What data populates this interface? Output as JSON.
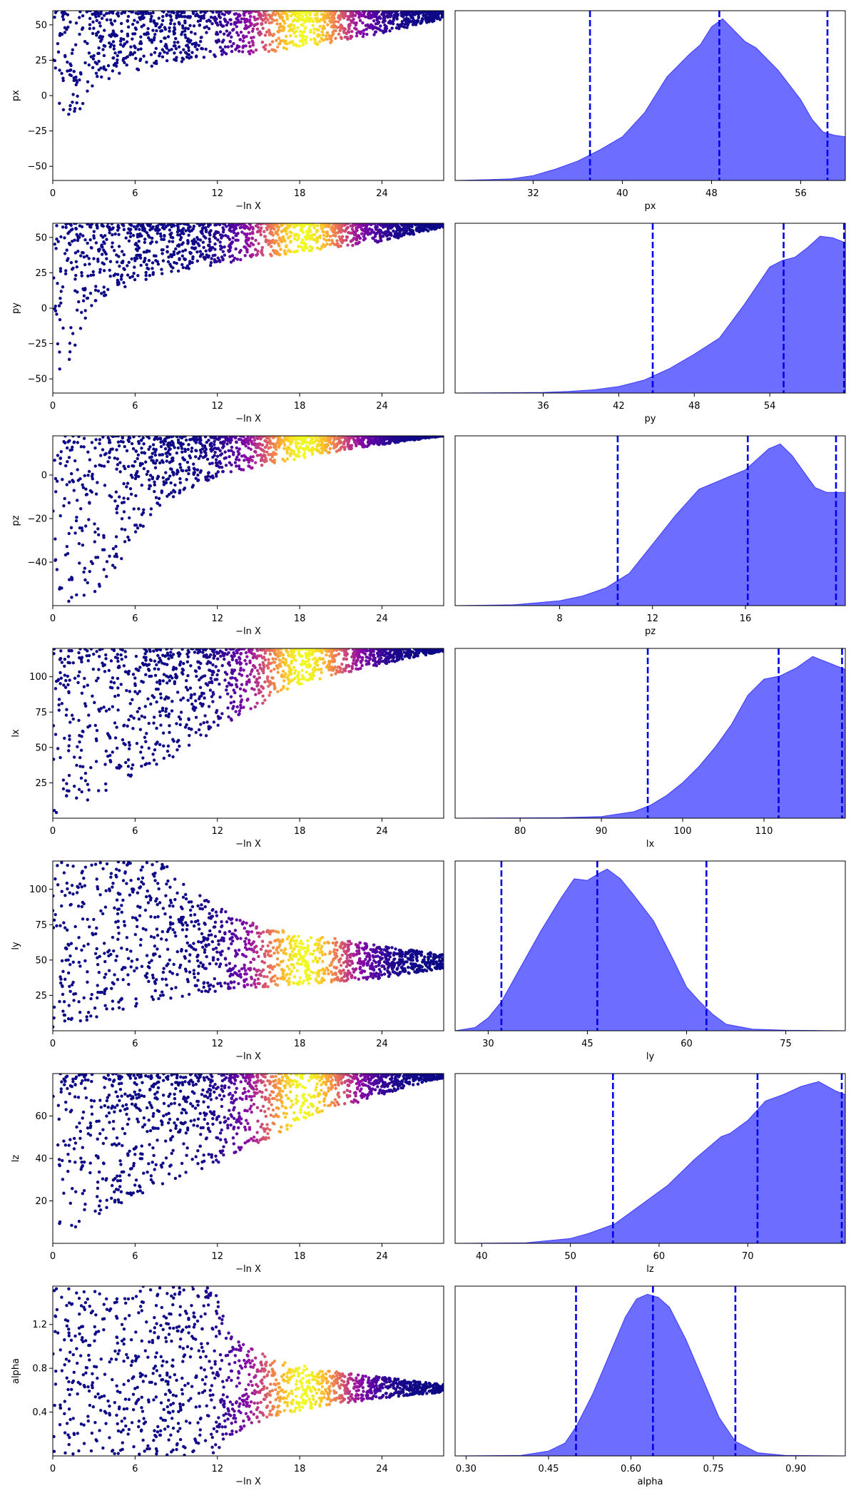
{
  "chart_data": [
    {
      "type": "scatter",
      "panel": "trace",
      "row": 0,
      "xlabel": "−ln X",
      "ylabel": "px",
      "xlim": [
        0,
        28.5
      ],
      "ylim": [
        -60,
        60
      ],
      "xticks": [
        0,
        6,
        12,
        18,
        24
      ],
      "yticks": [
        50,
        25,
        0,
        -25,
        -50
      ],
      "ytick_labels": [
        "50",
        "25",
        "0",
        "−25",
        "−50"
      ],
      "boundary": [
        [
          0,
          -60
        ],
        [
          1,
          -35
        ],
        [
          2,
          -10
        ],
        [
          3,
          5
        ],
        [
          5,
          15
        ],
        [
          8,
          22
        ],
        [
          12,
          27
        ],
        [
          16,
          31
        ],
        [
          20,
          37
        ],
        [
          24,
          44
        ],
        [
          28.5,
          54
        ]
      ],
      "color_peak_x": 18.3,
      "color_sigma": 2.6,
      "colormap": "plasma"
    },
    {
      "type": "area",
      "panel": "posterior",
      "row": 0,
      "xlabel": "px",
      "xlim": [
        25,
        60
      ],
      "ylim": [
        0,
        1.05
      ],
      "xticks": [
        32,
        40,
        48,
        56
      ],
      "quantile_lines": [
        37.1,
        48.7,
        58.4
      ],
      "curve": [
        [
          25,
          0
        ],
        [
          28,
          0.005
        ],
        [
          30,
          0.01
        ],
        [
          32,
          0.03
        ],
        [
          34,
          0.07
        ],
        [
          36,
          0.12
        ],
        [
          38,
          0.19
        ],
        [
          40,
          0.27
        ],
        [
          42,
          0.42
        ],
        [
          44,
          0.64
        ],
        [
          46,
          0.78
        ],
        [
          47,
          0.84
        ],
        [
          48,
          0.95
        ],
        [
          49,
          1.0
        ],
        [
          50,
          0.93
        ],
        [
          51,
          0.86
        ],
        [
          52,
          0.82
        ],
        [
          54,
          0.68
        ],
        [
          56,
          0.5
        ],
        [
          57,
          0.38
        ],
        [
          58,
          0.3
        ],
        [
          59,
          0.28
        ],
        [
          60,
          0.27
        ]
      ]
    },
    {
      "type": "scatter",
      "panel": "trace",
      "row": 1,
      "xlabel": "−ln X",
      "ylabel": "py",
      "xlim": [
        0,
        28.5
      ],
      "ylim": [
        -60,
        60
      ],
      "xticks": [
        0,
        6,
        12,
        18,
        24
      ],
      "yticks": [
        50,
        25,
        0,
        -25,
        -50
      ],
      "ytick_labels": [
        "50",
        "25",
        "0",
        "−25",
        "−50"
      ],
      "boundary": [
        [
          0,
          -60
        ],
        [
          1,
          -45
        ],
        [
          2,
          -15
        ],
        [
          3,
          2
        ],
        [
          5,
          14
        ],
        [
          8,
          24
        ],
        [
          12,
          31
        ],
        [
          16,
          37
        ],
        [
          20,
          42
        ],
        [
          24,
          47
        ],
        [
          28.5,
          57
        ]
      ],
      "color_peak_x": 18.3,
      "color_sigma": 2.6,
      "colormap": "plasma"
    },
    {
      "type": "area",
      "panel": "posterior",
      "row": 1,
      "xlabel": "py",
      "xlim": [
        29,
        60
      ],
      "ylim": [
        0,
        1.05
      ],
      "xticks": [
        36,
        42,
        48,
        54
      ],
      "quantile_lines": [
        44.7,
        55.1,
        59.9
      ],
      "curve": [
        [
          29,
          0
        ],
        [
          33,
          0.002
        ],
        [
          36,
          0.004
        ],
        [
          38,
          0.01
        ],
        [
          40,
          0.02
        ],
        [
          42,
          0.04
        ],
        [
          44,
          0.08
        ],
        [
          46,
          0.15
        ],
        [
          48,
          0.24
        ],
        [
          50,
          0.34
        ],
        [
          52,
          0.55
        ],
        [
          54,
          0.78
        ],
        [
          55,
          0.82
        ],
        [
          56,
          0.84
        ],
        [
          57,
          0.9
        ],
        [
          58,
          0.97
        ],
        [
          59,
          0.96
        ],
        [
          60,
          0.93
        ]
      ]
    },
    {
      "type": "scatter",
      "panel": "trace",
      "row": 2,
      "xlabel": "−ln X",
      "ylabel": "pz",
      "xlim": [
        0,
        28.5
      ],
      "ylim": [
        -60,
        18
      ],
      "xticks": [
        0,
        6,
        12,
        18,
        24
      ],
      "yticks": [
        0,
        -20,
        -40
      ],
      "ytick_labels": [
        "0",
        "−20",
        "−40"
      ],
      "boundary": [
        [
          0,
          -60
        ],
        [
          2,
          -60
        ],
        [
          4,
          -55
        ],
        [
          5,
          -40
        ],
        [
          6,
          -28
        ],
        [
          8,
          -13
        ],
        [
          10,
          -6
        ],
        [
          12,
          -1
        ],
        [
          16,
          5
        ],
        [
          20,
          10
        ],
        [
          24,
          14
        ],
        [
          28.5,
          18
        ]
      ],
      "color_peak_x": 18.3,
      "color_sigma": 2.6,
      "colormap": "plasma"
    },
    {
      "type": "area",
      "panel": "posterior",
      "row": 2,
      "xlabel": "pz",
      "xlim": [
        3.5,
        20.3
      ],
      "ylim": [
        0,
        1.05
      ],
      "xticks": [
        8,
        12,
        16
      ],
      "quantile_lines": [
        10.5,
        16.1,
        19.9
      ],
      "curve": [
        [
          3.5,
          0
        ],
        [
          6,
          0.005
        ],
        [
          8,
          0.03
        ],
        [
          9,
          0.06
        ],
        [
          10,
          0.11
        ],
        [
          11,
          0.2
        ],
        [
          12,
          0.38
        ],
        [
          13,
          0.56
        ],
        [
          14,
          0.72
        ],
        [
          15,
          0.78
        ],
        [
          16,
          0.84
        ],
        [
          17,
          0.97
        ],
        [
          17.5,
          1.0
        ],
        [
          18,
          0.93
        ],
        [
          19,
          0.73
        ],
        [
          19.5,
          0.7
        ],
        [
          20.3,
          0.7
        ]
      ]
    },
    {
      "type": "scatter",
      "panel": "trace",
      "row": 3,
      "xlabel": "−ln X",
      "ylabel": "lx",
      "xlim": [
        0,
        28.5
      ],
      "ylim": [
        0,
        120
      ],
      "xticks": [
        0,
        6,
        12,
        18,
        24
      ],
      "yticks": [
        100,
        75,
        50,
        25
      ],
      "ytick_labels": [
        "100",
        "75",
        "50",
        "25"
      ],
      "boundary": [
        [
          0,
          0
        ],
        [
          2,
          8
        ],
        [
          4,
          18
        ],
        [
          6,
          28
        ],
        [
          8,
          38
        ],
        [
          10,
          50
        ],
        [
          12,
          62
        ],
        [
          14,
          74
        ],
        [
          16,
          85
        ],
        [
          18,
          94
        ],
        [
          22,
          104
        ],
        [
          26,
          113
        ],
        [
          28.5,
          118
        ]
      ],
      "color_peak_x": 18.3,
      "color_sigma": 2.6,
      "colormap": "plasma"
    },
    {
      "type": "area",
      "panel": "posterior",
      "row": 3,
      "xlabel": "lx",
      "xlim": [
        72,
        120
      ],
      "ylim": [
        0,
        1.05
      ],
      "xticks": [
        80,
        90,
        100,
        110
      ],
      "quantile_lines": [
        95.7,
        111.8,
        119.6
      ],
      "curve": [
        [
          72,
          0
        ],
        [
          85,
          0.003
        ],
        [
          90,
          0.01
        ],
        [
          94,
          0.04
        ],
        [
          96,
          0.08
        ],
        [
          98,
          0.14
        ],
        [
          100,
          0.22
        ],
        [
          102,
          0.32
        ],
        [
          104,
          0.44
        ],
        [
          106,
          0.58
        ],
        [
          108,
          0.76
        ],
        [
          110,
          0.86
        ],
        [
          112,
          0.88
        ],
        [
          114,
          0.93
        ],
        [
          116,
          1.0
        ],
        [
          118,
          0.96
        ],
        [
          120,
          0.92
        ]
      ]
    },
    {
      "type": "scatter",
      "panel": "trace",
      "row": 4,
      "xlabel": "−ln X",
      "ylabel": "ly",
      "xlim": [
        0,
        28.5
      ],
      "ylim": [
        0,
        120
      ],
      "xticks": [
        0,
        6,
        12,
        18,
        24
      ],
      "yticks": [
        100,
        75,
        50,
        25
      ],
      "ytick_labels": [
        "100",
        "75",
        "50",
        "25"
      ],
      "upper": [
        [
          0,
          120
        ],
        [
          8,
          120
        ],
        [
          10,
          100
        ],
        [
          13,
          82
        ],
        [
          16,
          72
        ],
        [
          20,
          66
        ],
        [
          24,
          60
        ],
        [
          28.5,
          54
        ]
      ],
      "lower": [
        [
          0,
          0
        ],
        [
          2,
          5
        ],
        [
          4,
          12
        ],
        [
          8,
          22
        ],
        [
          12,
          28
        ],
        [
          16,
          31
        ],
        [
          20,
          34
        ],
        [
          24,
          37
        ],
        [
          28.5,
          44
        ]
      ],
      "color_peak_x": 18.3,
      "color_sigma": 2.6,
      "colormap": "plasma"
    },
    {
      "type": "area",
      "panel": "posterior",
      "row": 4,
      "xlabel": "ly",
      "xlim": [
        25,
        84
      ],
      "ylim": [
        0,
        1.05
      ],
      "xticks": [
        30,
        45,
        60,
        75
      ],
      "quantile_lines": [
        32.0,
        46.5,
        63.0
      ],
      "curve": [
        [
          25,
          0
        ],
        [
          28,
          0.02
        ],
        [
          30,
          0.08
        ],
        [
          32,
          0.18
        ],
        [
          35,
          0.4
        ],
        [
          38,
          0.62
        ],
        [
          41,
          0.82
        ],
        [
          43,
          0.94
        ],
        [
          45,
          0.93
        ],
        [
          47,
          0.98
        ],
        [
          48,
          1.0
        ],
        [
          50,
          0.94
        ],
        [
          52,
          0.84
        ],
        [
          55,
          0.68
        ],
        [
          58,
          0.44
        ],
        [
          60,
          0.27
        ],
        [
          62,
          0.18
        ],
        [
          64,
          0.1
        ],
        [
          66,
          0.04
        ],
        [
          70,
          0.01
        ],
        [
          75,
          0.003
        ],
        [
          84,
          0
        ]
      ]
    },
    {
      "type": "scatter",
      "panel": "trace",
      "row": 5,
      "xlabel": "−ln X",
      "ylabel": "lz",
      "xlim": [
        0,
        28.5
      ],
      "ylim": [
        0,
        80
      ],
      "xticks": [
        0,
        6,
        12,
        18,
        24
      ],
      "yticks": [
        60,
        40,
        20
      ],
      "ytick_labels": [
        "60",
        "40",
        "20"
      ],
      "boundary": [
        [
          0,
          0
        ],
        [
          2,
          7
        ],
        [
          4,
          14
        ],
        [
          6,
          21
        ],
        [
          8,
          27
        ],
        [
          10,
          33
        ],
        [
          12,
          38
        ],
        [
          14,
          44
        ],
        [
          16,
          50
        ],
        [
          18,
          56
        ],
        [
          20,
          62
        ],
        [
          22,
          66
        ],
        [
          26,
          74
        ],
        [
          28.5,
          78
        ]
      ],
      "color_peak_x": 18.3,
      "color_sigma": 2.6,
      "colormap": "plasma"
    },
    {
      "type": "area",
      "panel": "posterior",
      "row": 5,
      "xlabel": "lz",
      "xlim": [
        37,
        81
      ],
      "ylim": [
        0,
        1.05
      ],
      "xticks": [
        40,
        50,
        60,
        70
      ],
      "quantile_lines": [
        54.8,
        71.1,
        80.6
      ],
      "curve": [
        [
          37,
          0
        ],
        [
          45,
          0.003
        ],
        [
          50,
          0.03
        ],
        [
          52,
          0.06
        ],
        [
          55,
          0.12
        ],
        [
          58,
          0.24
        ],
        [
          61,
          0.36
        ],
        [
          64,
          0.52
        ],
        [
          67,
          0.66
        ],
        [
          68,
          0.68
        ],
        [
          70,
          0.76
        ],
        [
          72,
          0.88
        ],
        [
          74,
          0.92
        ],
        [
          76,
          0.97
        ],
        [
          78,
          1.0
        ],
        [
          80,
          0.94
        ],
        [
          81,
          0.92
        ]
      ]
    },
    {
      "type": "scatter",
      "panel": "trace",
      "row": 6,
      "xlabel": "−ln X",
      "ylabel": "alpha",
      "xlim": [
        0,
        28.5
      ],
      "ylim": [
        0,
        1.55
      ],
      "xticks": [
        0,
        6,
        12,
        18,
        24
      ],
      "yticks": [
        1.2,
        0.8,
        0.4
      ],
      "ytick_labels": [
        "1.2",
        "0.8",
        "0.4"
      ],
      "upper": [
        [
          0,
          1.55
        ],
        [
          12,
          1.55
        ],
        [
          13,
          1.1
        ],
        [
          16,
          0.88
        ],
        [
          20,
          0.78
        ],
        [
          24,
          0.72
        ],
        [
          28.5,
          0.65
        ]
      ],
      "lower": [
        [
          0,
          0
        ],
        [
          12,
          0
        ],
        [
          13,
          0.18
        ],
        [
          16,
          0.36
        ],
        [
          20,
          0.46
        ],
        [
          24,
          0.53
        ],
        [
          28.5,
          0.58
        ]
      ],
      "color_peak_x": 18.3,
      "color_sigma": 2.6,
      "colormap": "plasma"
    },
    {
      "type": "area",
      "panel": "posterior",
      "row": 6,
      "xlabel": "alpha",
      "xlim": [
        0.28,
        0.99
      ],
      "ylim": [
        0,
        1.05
      ],
      "xticks": [
        0.3,
        0.45,
        0.6,
        0.75,
        0.9
      ],
      "xtick_labels": [
        "0.30",
        "0.45",
        "0.60",
        "0.75",
        "0.90"
      ],
      "quantile_lines": [
        0.5,
        0.64,
        0.79
      ],
      "curve": [
        [
          0.28,
          0
        ],
        [
          0.4,
          0.003
        ],
        [
          0.45,
          0.03
        ],
        [
          0.48,
          0.08
        ],
        [
          0.5,
          0.18
        ],
        [
          0.53,
          0.38
        ],
        [
          0.56,
          0.62
        ],
        [
          0.59,
          0.86
        ],
        [
          0.61,
          0.97
        ],
        [
          0.63,
          1.0
        ],
        [
          0.65,
          0.98
        ],
        [
          0.67,
          0.92
        ],
        [
          0.7,
          0.72
        ],
        [
          0.73,
          0.48
        ],
        [
          0.76,
          0.24
        ],
        [
          0.79,
          0.09
        ],
        [
          0.83,
          0.02
        ],
        [
          0.88,
          0.003
        ],
        [
          0.99,
          0
        ]
      ]
    }
  ]
}
